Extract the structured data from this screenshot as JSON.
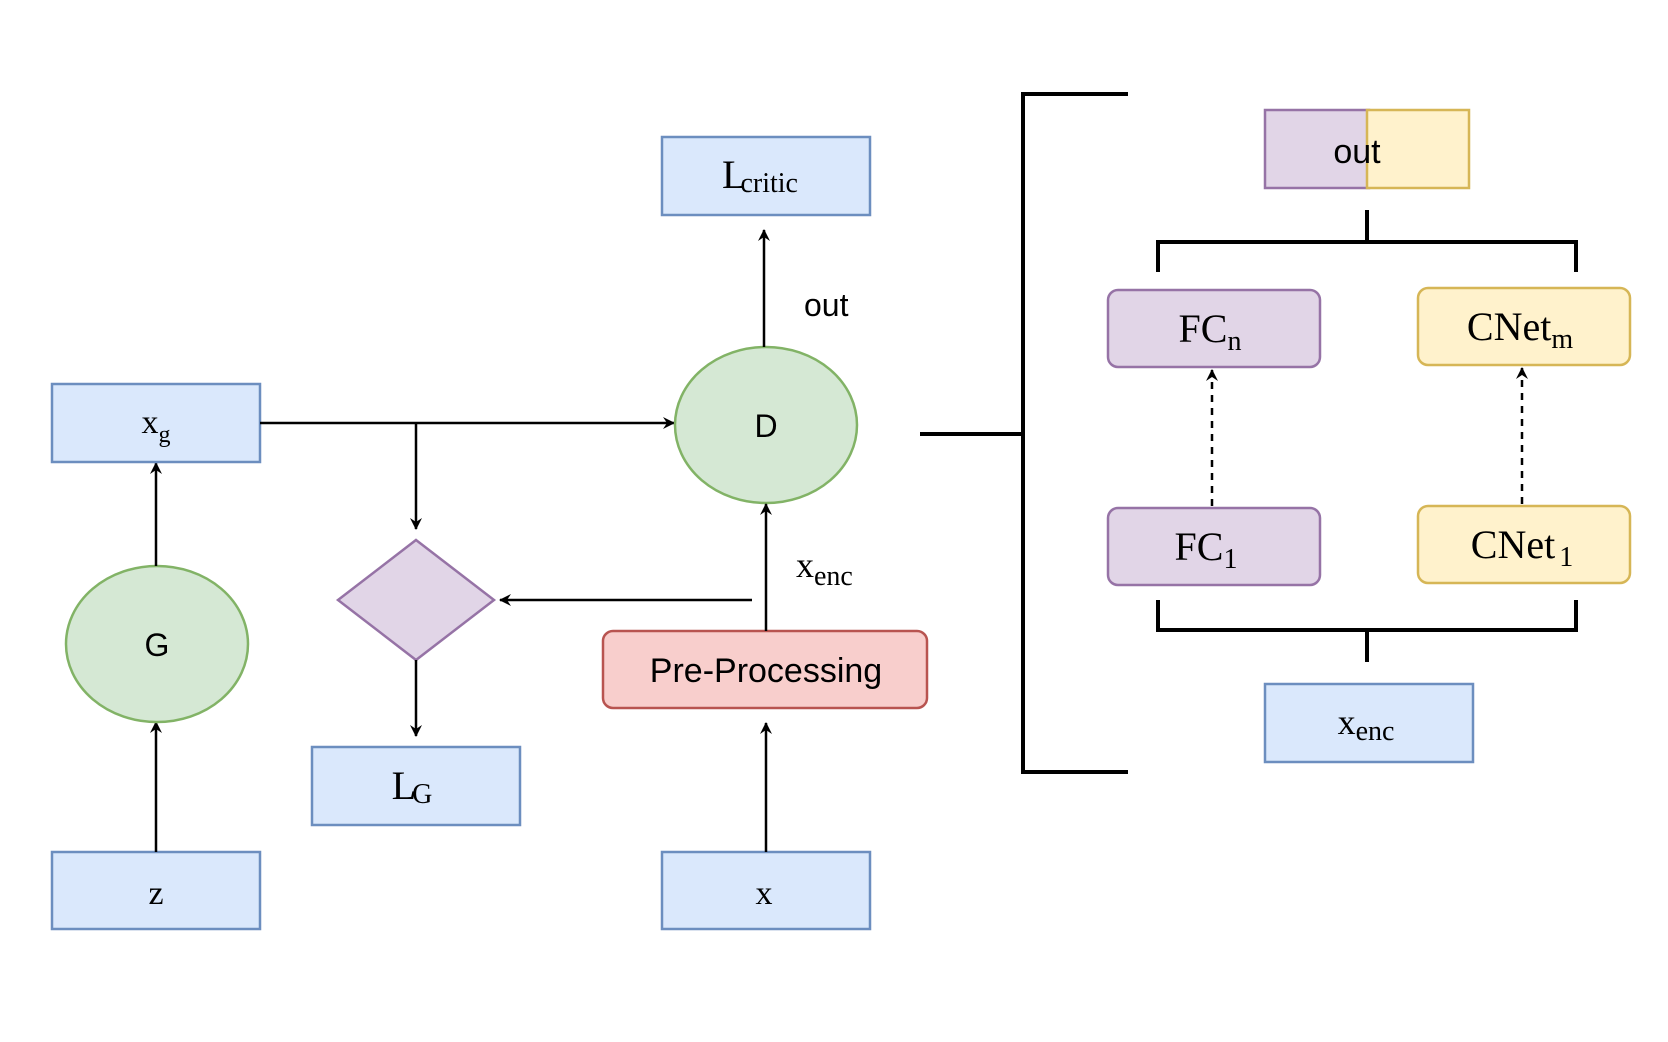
{
  "colors": {
    "blue_fill": "#dae8fc",
    "blue_stroke": "#6c8ebf",
    "green_fill": "#d5e8d4",
    "green_stroke": "#82b366",
    "purple_fill": "#e1d5e7",
    "purple_stroke": "#9673a6",
    "yellow_fill": "#fff2cc",
    "yellow_stroke": "#d6b656",
    "red_fill": "#f8cecc",
    "red_stroke": "#b85450",
    "line": "#000000"
  },
  "nodes": {
    "z": {
      "label": "z"
    },
    "g": {
      "label": "G"
    },
    "xg": {
      "label": "x",
      "sub": "g"
    },
    "diamond": {
      "label": ""
    },
    "lg": {
      "label": "L",
      "sub": "G"
    },
    "d": {
      "label": "D"
    },
    "lcritic": {
      "label": "L",
      "sub": "critic"
    },
    "x": {
      "label": "x"
    },
    "preproc": {
      "label": "Pre-Processing"
    }
  },
  "edge_labels": {
    "out": "out",
    "xenc": {
      "label": "x",
      "sub": "enc"
    }
  },
  "detail": {
    "out_box": {
      "label": "out"
    },
    "fcn": {
      "label": "FC",
      "sub": "n"
    },
    "fc1": {
      "label": "FC",
      "sub": "1"
    },
    "cnetm": {
      "label": "CNet",
      "sub": "m"
    },
    "cnet1": {
      "label": "CNet",
      "sub": "1"
    },
    "xenc_box": {
      "label": "x",
      "sub": "enc"
    }
  }
}
